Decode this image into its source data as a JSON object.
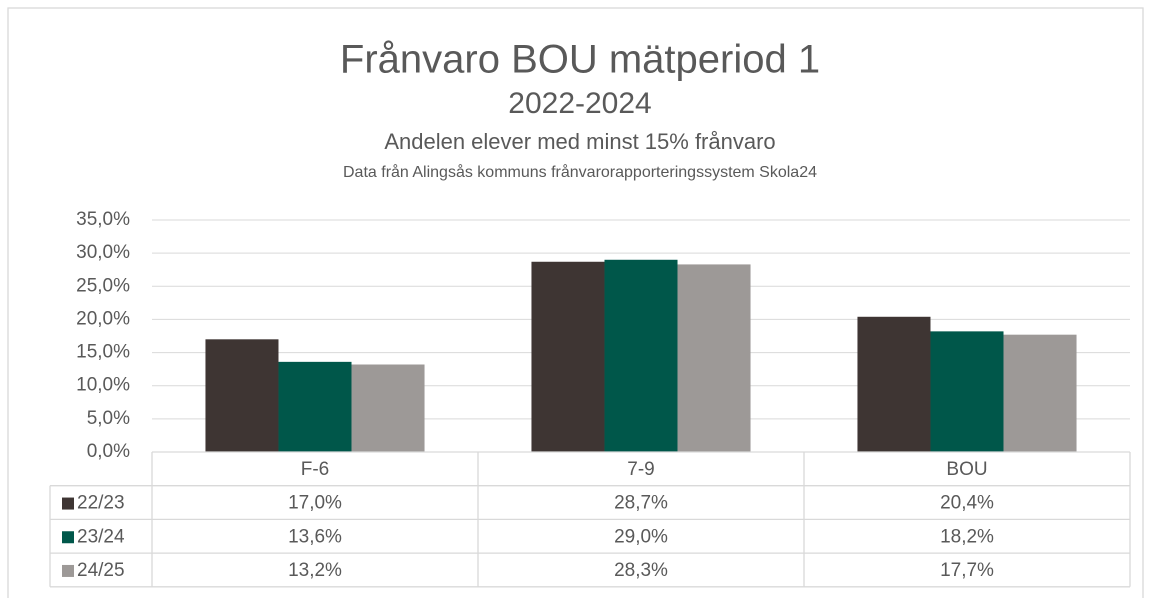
{
  "chart_data": {
    "type": "bar",
    "title": "Frånvaro BOU mätperiod 1",
    "subtitle": "2022-2024",
    "description": "Andelen elever med minst 15% frånvaro",
    "source": "Data från Alingsås kommuns frånvarorapporteringssystem Skola24",
    "categories": [
      "F-6",
      "7-9",
      "BOU"
    ],
    "series": [
      {
        "name": "22/23",
        "color": "#3e3533",
        "values": [
          17.0,
          28.7,
          20.4
        ],
        "value_labels": [
          "17,0%",
          "28,7%",
          "20,4%"
        ]
      },
      {
        "name": "23/24",
        "color": "#00574a",
        "values": [
          13.6,
          29.0,
          18.2
        ],
        "value_labels": [
          "13,6%",
          "29,0%",
          "18,2%"
        ]
      },
      {
        "name": "24/25",
        "color": "#9d9997",
        "values": [
          13.2,
          28.3,
          17.7
        ],
        "value_labels": [
          "13,2%",
          "28,3%",
          "17,7%"
        ]
      }
    ],
    "ylim": [
      0,
      35
    ],
    "yticks": [
      {
        "value": 0,
        "label": "0,0%"
      },
      {
        "value": 5,
        "label": "5,0%"
      },
      {
        "value": 10,
        "label": "10,0%"
      },
      {
        "value": 15,
        "label": "15,0%"
      },
      {
        "value": 20,
        "label": "20,0%"
      },
      {
        "value": 25,
        "label": "25,0%"
      },
      {
        "value": 30,
        "label": "30,0%"
      },
      {
        "value": 35,
        "label": "35,0%"
      }
    ],
    "grid": true
  }
}
